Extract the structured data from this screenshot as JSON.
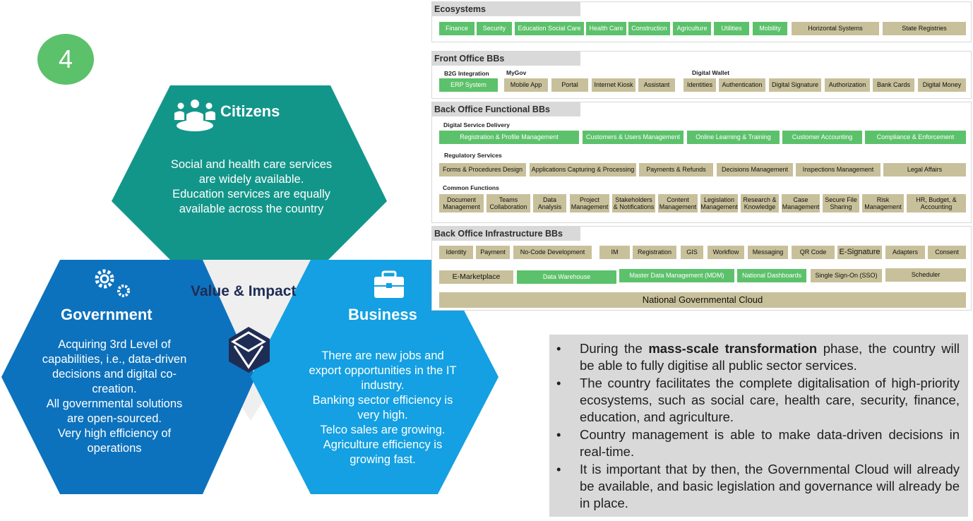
{
  "badge": "4",
  "center_title": "Value & Impact",
  "citizens": {
    "title": "Citizens",
    "lines": [
      "Social and health care services",
      "are widely available.",
      "Education services are equally",
      "available across the country"
    ]
  },
  "government": {
    "title": "Government",
    "lines": [
      "Acquiring 3rd Level of",
      "capabilities, i.e., data-driven",
      "decisions and digital co-",
      "creation.",
      "All governmental solutions",
      "are open-sourced.",
      "Very high efficiency of",
      "operations"
    ]
  },
  "business": {
    "title": "Business",
    "lines": [
      "There are new jobs and",
      "export opportunities in the IT",
      "industry.",
      "Banking sector efficiency is",
      "very high.",
      "Telco sales are growing.",
      "Agriculture efficiency is",
      "growing fast."
    ]
  },
  "colors": {
    "citizens": "#13968a",
    "government": "#0d72bd",
    "business": "#14a0e2",
    "green": "#5cc16b",
    "khaki": "#c8c09a"
  },
  "ecosystems": {
    "title": "Ecosystems",
    "items": [
      "Finance",
      "Security",
      "Education Social Care",
      "Health Care",
      "Construction",
      "Agriculture",
      "Utilities",
      "Mobility",
      "Horizontal Systems",
      "State Registries"
    ]
  },
  "front_office": {
    "title": "Front Office BBs",
    "b2g_label": "B2G Integration",
    "mygov_label": "MyGov",
    "wallet_label": "Digital Wallet",
    "items": [
      "ERP System",
      "Mobile App",
      "Portal",
      "Internet Kiosk",
      "Assistant",
      "Identities",
      "Authentication",
      "Digital Signature",
      "Authorization",
      "Bank Cards",
      "Digital Money"
    ]
  },
  "back_office_functional": {
    "title": "Back Office Functional BBs",
    "dsd_label": "Digital Service Delivery",
    "dsd_items": [
      "Registration & Profile Management",
      "Customers & Users Management",
      "Online Learning & Training",
      "Customer Accounting",
      "Compliance & Enforcement"
    ],
    "reg_label": "Regulatory Services",
    "reg_items": [
      "Forms & Procedures Design",
      "Applications Capturing & Processing",
      "Payments & Refunds",
      "Decisions Management",
      "Inspections Management",
      "Legal Affairs"
    ],
    "common_label": "Common Functions",
    "common_items": [
      "Document Management",
      "Teams Collaboration",
      "Data Analysis",
      "Project Management",
      "Stakeholders & Notifications",
      "Content Management",
      "Legislation Management",
      "Research & Knowledge",
      "Case Management",
      "Secure File Sharing",
      "Risk Management",
      "HR, Budget, & Accounting"
    ]
  },
  "back_office_infra": {
    "title": "Back Office Infrastructure BBs",
    "row1": [
      "Identity",
      "Payment",
      "No-Code Development",
      "IM",
      "Registration",
      "GIS",
      "Workflow",
      "Messaging",
      "QR Code",
      "E-Signature",
      "Adapters",
      "Consent"
    ],
    "row2": [
      "E-Marketplace",
      "Data Warehouse",
      "Master Data Management (MDM)",
      "National Dashboards",
      "Single Sign-On (SSO)",
      "Scheduler"
    ],
    "cloud": "National Governmental Cloud"
  },
  "summary": [
    {
      "pre": "During the ",
      "bold": "mass-scale transformation",
      "post": " phase, the country will be able to fully digitise all public sector services."
    },
    {
      "pre": "The country facilitates the complete digitalisation of high-priority ecosystems, such as social care, health care, security, finance, education, and agriculture.",
      "bold": "",
      "post": ""
    },
    {
      "pre": "Country management is able to make data-driven decisions in real-time.",
      "bold": "",
      "post": ""
    },
    {
      "pre": "It is important that by then, the Governmental Cloud will already be available, and basic legislation and governance will already be in place.",
      "bold": "",
      "post": ""
    }
  ]
}
